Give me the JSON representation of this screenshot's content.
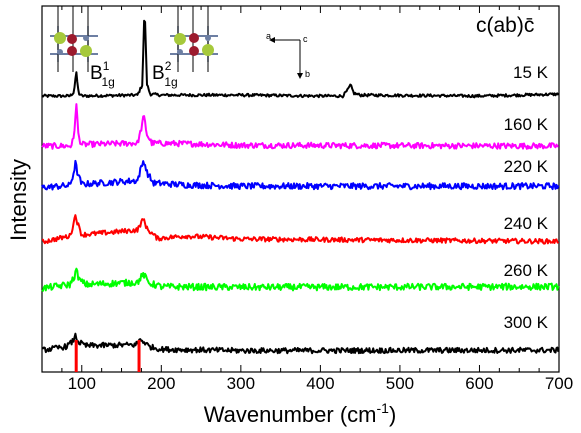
{
  "chart_data": {
    "type": "line",
    "title": "",
    "geometry_label": "c(ab)c̄",
    "xlabel": "Wavenumber (cm",
    "xlabel_sup": "-1",
    "xlabel_end": ")",
    "ylabel": "Intensity",
    "xlim": [
      50,
      700
    ],
    "x_ticks": [
      100,
      200,
      300,
      400,
      500,
      600,
      700
    ],
    "y_ticks_shown": false,
    "peak_labels": [
      {
        "base": "B",
        "sup": "1",
        "sub": "1g",
        "x": 93
      },
      {
        "base": "B",
        "sup": "2",
        "sub": "1g",
        "x": 178
      }
    ],
    "axes_arrows": {
      "a": "a",
      "b": "b",
      "c": "c"
    },
    "marker_lines_x": [
      93,
      172
    ],
    "marker_color": "#ff0000",
    "series": [
      {
        "name": "15 K",
        "color": "#000000",
        "noise": 1.5,
        "points": [
          [
            50,
            0
          ],
          [
            85,
            0
          ],
          [
            90,
            4
          ],
          [
            93,
            26
          ],
          [
            96,
            3
          ],
          [
            100,
            0
          ],
          [
            170,
            1
          ],
          [
            176,
            12
          ],
          [
            179,
            98
          ],
          [
            182,
            13
          ],
          [
            186,
            2
          ],
          [
            200,
            1
          ],
          [
            238,
            1
          ],
          [
            300,
            1
          ],
          [
            400,
            0
          ],
          [
            428,
            0
          ],
          [
            434,
            6
          ],
          [
            438,
            12
          ],
          [
            442,
            3
          ],
          [
            450,
            1
          ],
          [
            600,
            0
          ],
          [
            700,
            2
          ]
        ]
      },
      {
        "name": "160 K",
        "color": "#ff00ff",
        "noise": 4,
        "points": [
          [
            50,
            0
          ],
          [
            86,
            0
          ],
          [
            90,
            10
          ],
          [
            93,
            60
          ],
          [
            96,
            12
          ],
          [
            100,
            2
          ],
          [
            170,
            4
          ],
          [
            174,
            20
          ],
          [
            178,
            42
          ],
          [
            182,
            16
          ],
          [
            188,
            4
          ],
          [
            240,
            3
          ],
          [
            300,
            1
          ],
          [
            700,
            0
          ]
        ]
      },
      {
        "name": "220 K",
        "color": "#0000ff",
        "noise": 5,
        "points": [
          [
            50,
            1
          ],
          [
            85,
            4
          ],
          [
            89,
            20
          ],
          [
            92,
            40
          ],
          [
            95,
            22
          ],
          [
            100,
            6
          ],
          [
            170,
            12
          ],
          [
            174,
            30
          ],
          [
            178,
            45
          ],
          [
            182,
            25
          ],
          [
            190,
            8
          ],
          [
            230,
            5
          ],
          [
            300,
            3
          ],
          [
            700,
            3
          ]
        ]
      },
      {
        "name": "240 K",
        "color": "#ff0000",
        "noise": 4,
        "points": [
          [
            50,
            0
          ],
          [
            85,
            10
          ],
          [
            89,
            26
          ],
          [
            92,
            46
          ],
          [
            95,
            30
          ],
          [
            100,
            12
          ],
          [
            170,
            20
          ],
          [
            175,
            33
          ],
          [
            178,
            38
          ],
          [
            182,
            22
          ],
          [
            195,
            6
          ],
          [
            230,
            10
          ],
          [
            260,
            8
          ],
          [
            300,
            5
          ],
          [
            700,
            1
          ]
        ]
      },
      {
        "name": "260 K",
        "color": "#00ff00",
        "noise": 6,
        "points": [
          [
            50,
            3
          ],
          [
            85,
            10
          ],
          [
            90,
            22
          ],
          [
            93,
            36
          ],
          [
            97,
            18
          ],
          [
            105,
            10
          ],
          [
            170,
            14
          ],
          [
            175,
            24
          ],
          [
            178,
            28
          ],
          [
            184,
            13
          ],
          [
            200,
            6
          ],
          [
            300,
            5
          ],
          [
            700,
            6
          ]
        ]
      },
      {
        "name": "300 K",
        "color": "#000000",
        "noise": 6,
        "points": [
          [
            50,
            4
          ],
          [
            80,
            12
          ],
          [
            88,
            22
          ],
          [
            92,
            36
          ],
          [
            96,
            22
          ],
          [
            105,
            14
          ],
          [
            168,
            16
          ],
          [
            173,
            28
          ],
          [
            178,
            23
          ],
          [
            185,
            12
          ],
          [
            200,
            6
          ],
          [
            300,
            3
          ],
          [
            700,
            4
          ]
        ]
      }
    ]
  }
}
